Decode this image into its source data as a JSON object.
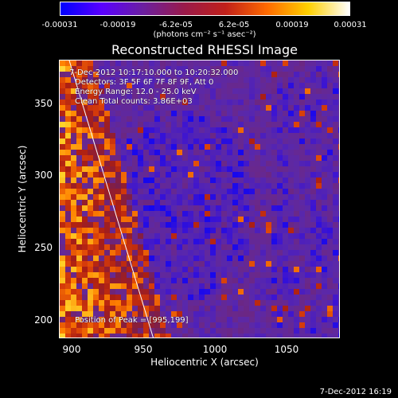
{
  "colorbar": {
    "tick_labels": [
      "-0.00031",
      "-0.00019",
      "-6.2e-05",
      "6.2e-05",
      "0.00019",
      "0.00031"
    ],
    "units": "(photons cm⁻² s⁻¹ asec⁻²)",
    "colors": [
      "#0000ff",
      "#5a00ff",
      "#6b1fa0",
      "#9a1a4a",
      "#c0201a",
      "#ff6a00",
      "#ffd000",
      "#ffffff"
    ]
  },
  "plot": {
    "title": "Reconstructed RHESSI Image",
    "annotations": {
      "time": "7-Dec-2012 10:17:10.000 to 10:20:32.000",
      "detectors": "Detectors: 3F 5F 6F 7F 8F 9F, Att 0",
      "energy": "Energy Range: 12.0 - 25.0 keV",
      "clean": "Clean     Total counts: 3.86E+03",
      "peak": "Position of Peak = [995,199]"
    },
    "x_axis_title": "Heliocentric X (arcsec)",
    "y_axis_title": "Heliocentric Y (arcsec)",
    "x_ticks": [
      "900",
      "950",
      "1000",
      "1050"
    ],
    "y_ticks": [
      "350",
      "300",
      "250",
      "200"
    ]
  },
  "footer": {
    "timestamp": "7-Dec-2012 16:19"
  },
  "chart_data": {
    "type": "heatmap",
    "title": "Reconstructed RHESSI Image",
    "xlabel": "Heliocentric X (arcsec)",
    "ylabel": "Heliocentric Y (arcsec)",
    "xlim": [
      890,
      1085
    ],
    "ylim": [
      187,
      380
    ],
    "color_range": [
      -0.00031,
      0.00031
    ],
    "peak_position": [
      995,
      199
    ]
  }
}
